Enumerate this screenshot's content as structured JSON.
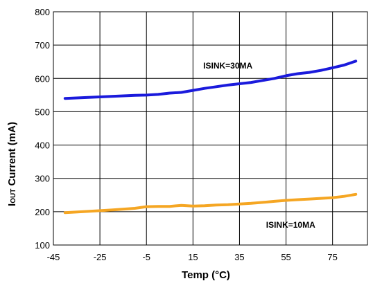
{
  "chart_data": {
    "type": "line",
    "xlabel": "Temp (°C)",
    "ylabel_main": "I",
    "ylabel_sub": "OUT",
    "ylabel_rest": " Current (mA)",
    "xlim": [
      -45,
      90
    ],
    "ylim": [
      100,
      800
    ],
    "xticks": [
      -45,
      -25,
      -5,
      15,
      35,
      55,
      75
    ],
    "yticks": [
      100,
      200,
      300,
      400,
      500,
      600,
      700,
      800
    ],
    "grid": true,
    "colors": {
      "isink30": "#1a1adc",
      "isink10": "#f5a623"
    },
    "series": [
      {
        "name": "ISINK=30MA",
        "x": [
          -40,
          -30,
          -20,
          -10,
          -5,
          0,
          5,
          10,
          15,
          20,
          25,
          30,
          35,
          40,
          45,
          50,
          55,
          60,
          65,
          70,
          75,
          80,
          85
        ],
        "values": [
          540,
          543,
          546,
          549,
          550,
          552,
          556,
          558,
          564,
          570,
          575,
          580,
          584,
          588,
          594,
          600,
          608,
          614,
          618,
          624,
          632,
          640,
          652
        ]
      },
      {
        "name": "ISINK=10MA",
        "x": [
          -40,
          -30,
          -20,
          -10,
          -5,
          0,
          5,
          10,
          15,
          20,
          25,
          30,
          35,
          40,
          45,
          50,
          55,
          60,
          65,
          70,
          75,
          80,
          85
        ],
        "values": [
          197,
          201,
          205,
          210,
          215,
          216,
          216,
          219,
          217,
          218,
          220,
          221,
          223,
          225,
          228,
          231,
          234,
          236,
          238,
          240,
          242,
          246,
          252
        ]
      }
    ],
    "annotations": [
      {
        "text": "ISINK=30MA",
        "x": 30,
        "y": 630
      },
      {
        "text": "ISINK=10MA",
        "x": 57,
        "y": 152
      }
    ]
  }
}
